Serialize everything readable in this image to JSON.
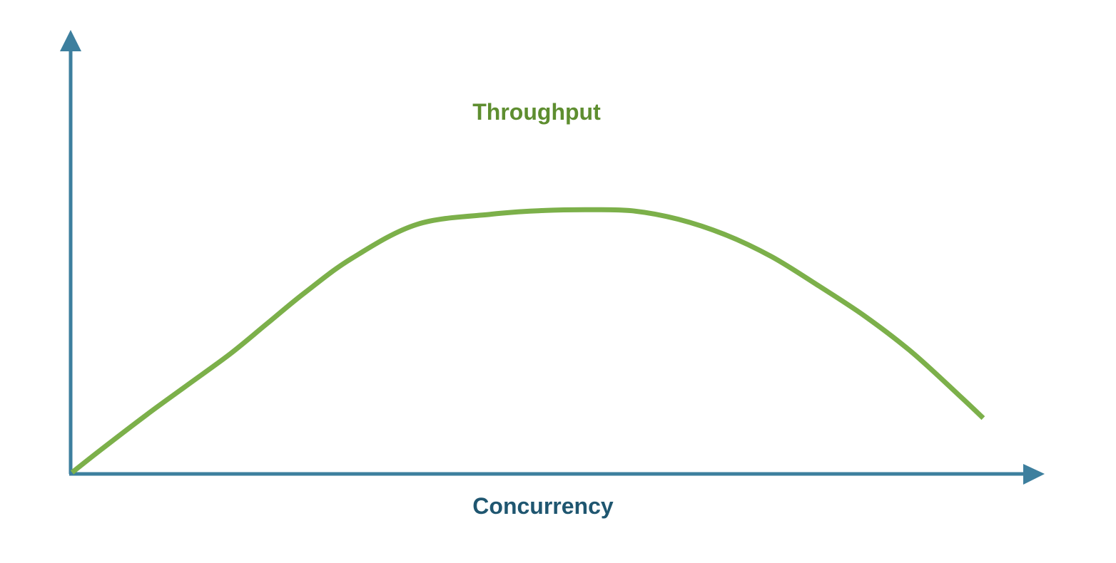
{
  "colors": {
    "axis": "#3d7f9e",
    "series": "#7cb04a",
    "series_label": "#5e8e30",
    "axis_label": "#1f5670"
  },
  "chart_data": {
    "type": "line",
    "title": "",
    "xlabel": "Concurrency",
    "ylabel": "",
    "grid": false,
    "xlim": [
      0,
      100
    ],
    "ylim": [
      0,
      100
    ],
    "series": [
      {
        "name": "Throughput",
        "x": [
          0,
          3,
          8,
          12,
          17,
          21,
          25,
          30,
          37,
          45,
          50,
          55,
          60,
          65,
          70,
          75,
          80,
          85,
          90,
          95,
          97.7
        ],
        "y": [
          0,
          6.5,
          17,
          25,
          35,
          44,
          53,
          63,
          73,
          76,
          77,
          77.3,
          77,
          74.5,
          70,
          63.5,
          55,
          46,
          35.5,
          23,
          16
        ]
      }
    ]
  }
}
